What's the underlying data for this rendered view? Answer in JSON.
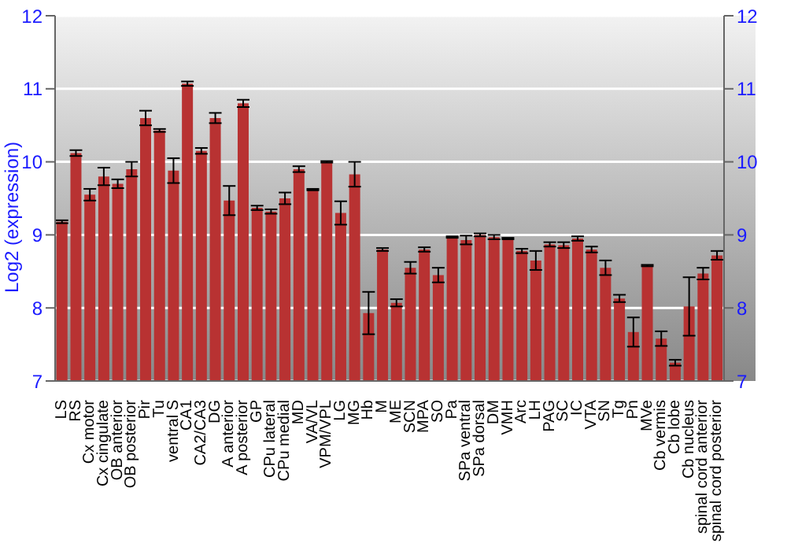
{
  "chart_data": {
    "type": "bar",
    "ylabel": "Log2 (expression)",
    "categories": [
      "LS",
      "RS",
      "Cx motor",
      "Cx cingulate",
      "OB anterior",
      "OB posterior",
      "Pir",
      "Tu",
      "ventral S",
      "CA1",
      "CA2/CA3",
      "DG",
      "A anterior",
      "A posterior",
      "GP",
      "CPu lateral",
      "CPu medial",
      "MD",
      "VA/VL",
      "VPM/VPL",
      "LG",
      "MG",
      "Hb",
      "M",
      "ME",
      "SCN",
      "MPA",
      "SO",
      "Pa",
      "SPa ventral",
      "SPa dorsal",
      "DM",
      "VMH",
      "Arc",
      "LH",
      "PAG",
      "SC",
      "IC",
      "VTA",
      "SN",
      "Tg",
      "Pn",
      "MVe",
      "Cb vermis",
      "Cb lobe",
      "Cb nucleus",
      "spinal cord anterior",
      "spinal cord posterior"
    ],
    "values": [
      9.18,
      10.12,
      9.55,
      9.8,
      9.7,
      9.9,
      10.6,
      10.43,
      9.88,
      11.07,
      10.15,
      10.6,
      9.47,
      10.8,
      9.37,
      9.32,
      9.5,
      9.9,
      9.62,
      10.0,
      9.3,
      9.83,
      7.93,
      8.8,
      8.07,
      8.55,
      8.8,
      8.45,
      8.97,
      8.93,
      9.0,
      8.97,
      8.95,
      8.78,
      8.65,
      8.87,
      8.86,
      8.95,
      8.8,
      8.55,
      8.13,
      7.67,
      8.58,
      7.58,
      7.25,
      8.02,
      8.47,
      8.72
    ],
    "errors": [
      0.02,
      0.04,
      0.08,
      0.12,
      0.06,
      0.1,
      0.1,
      0.02,
      0.17,
      0.03,
      0.04,
      0.07,
      0.2,
      0.05,
      0.03,
      0.03,
      0.08,
      0.04,
      0.01,
      0.01,
      0.16,
      0.17,
      0.29,
      0.02,
      0.05,
      0.08,
      0.03,
      0.1,
      0.01,
      0.06,
      0.02,
      0.03,
      0.01,
      0.03,
      0.13,
      0.03,
      0.04,
      0.03,
      0.04,
      0.1,
      0.05,
      0.2,
      0.01,
      0.1,
      0.04,
      0.4,
      0.08,
      0.06
    ],
    "color": "#b83232",
    "ylim": [
      7,
      12
    ],
    "yticks": [
      7,
      8,
      9,
      10,
      11,
      12
    ],
    "y2lim": [
      7,
      12
    ],
    "y2ticks": [
      7,
      8,
      9,
      10,
      11,
      12
    ],
    "grid": "y"
  }
}
